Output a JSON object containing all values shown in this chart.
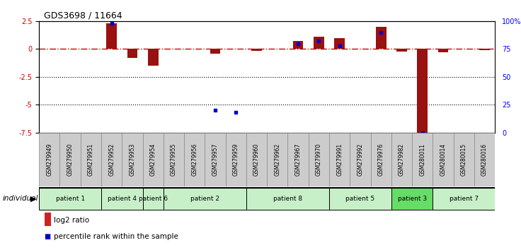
{
  "title": "GDS3698 / 11664",
  "samples": [
    "GSM279949",
    "GSM279950",
    "GSM279951",
    "GSM279952",
    "GSM279953",
    "GSM279954",
    "GSM279955",
    "GSM279956",
    "GSM279957",
    "GSM279959",
    "GSM279960",
    "GSM279962",
    "GSM279967",
    "GSM279970",
    "GSM279991",
    "GSM279992",
    "GSM279976",
    "GSM279982",
    "GSM280011",
    "GSM280014",
    "GSM280015",
    "GSM280016"
  ],
  "log2_ratio": [
    0.0,
    0.0,
    0.0,
    2.3,
    -0.8,
    -1.5,
    0.0,
    0.0,
    -0.4,
    0.0,
    -0.15,
    0.0,
    0.7,
    1.1,
    1.0,
    0.0,
    2.0,
    -0.2,
    -7.5,
    -0.3,
    0.0,
    -0.1
  ],
  "percentile_rank": [
    null,
    null,
    null,
    98,
    null,
    null,
    null,
    null,
    20,
    18,
    null,
    null,
    80,
    82,
    78,
    null,
    90,
    null,
    0,
    null,
    null,
    null
  ],
  "patients": [
    {
      "label": "patient 1",
      "start": 0,
      "end": 3,
      "color": "#c8f0c8"
    },
    {
      "label": "patient 4",
      "start": 3,
      "end": 5,
      "color": "#c8f0c8"
    },
    {
      "label": "patient 6",
      "start": 5,
      "end": 6,
      "color": "#c8f0c8"
    },
    {
      "label": "patient 2",
      "start": 6,
      "end": 10,
      "color": "#c8f0c8"
    },
    {
      "label": "patient 8",
      "start": 10,
      "end": 14,
      "color": "#c8f0c8"
    },
    {
      "label": "patient 5",
      "start": 14,
      "end": 17,
      "color": "#c8f0c8"
    },
    {
      "label": "patient 3",
      "start": 17,
      "end": 19,
      "color": "#66dd66"
    },
    {
      "label": "patient 7",
      "start": 19,
      "end": 22,
      "color": "#c8f0c8"
    }
  ],
  "ylim": [
    -7.5,
    2.5
  ],
  "right_ylim": [
    0,
    100
  ],
  "bar_color": "#991111",
  "dot_color": "#0000cc",
  "dashed_line_color": "#cc0000",
  "grid_line_color": "#000000",
  "bg_color": "#ffffff",
  "sample_bg_color": "#cccccc",
  "legend_bar_color": "#cc2222",
  "legend_dot_color": "#0000cc"
}
